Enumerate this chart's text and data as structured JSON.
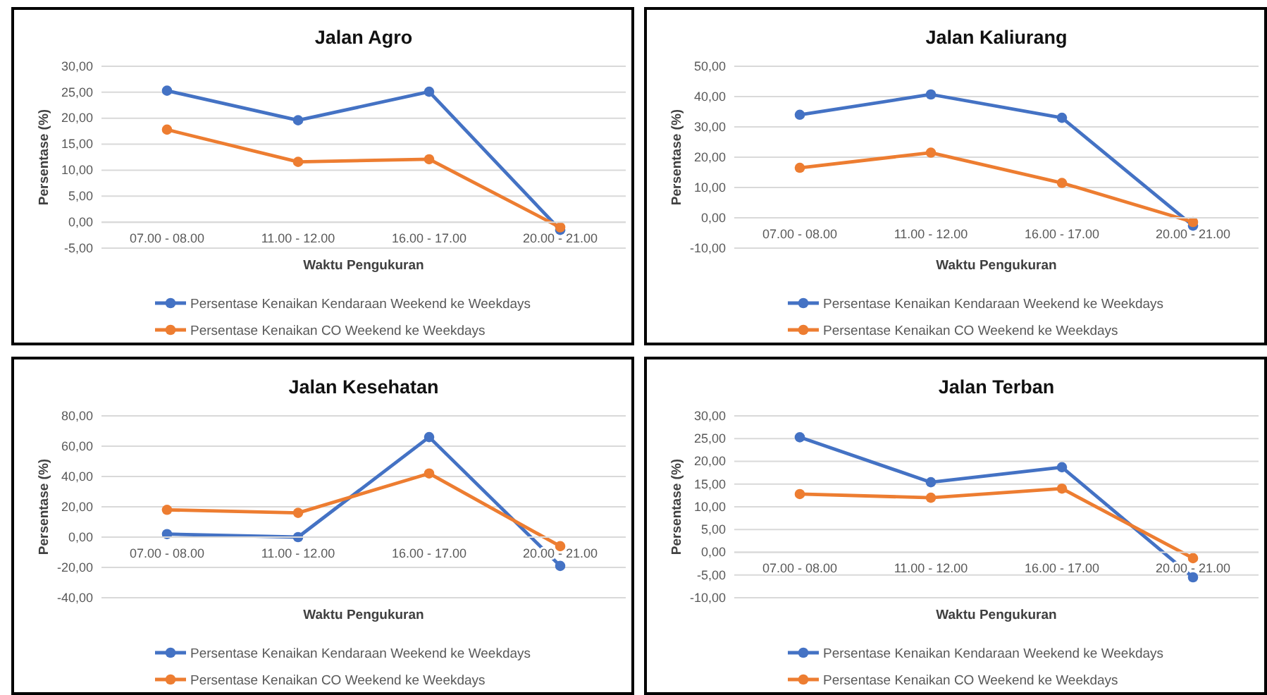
{
  "chart_data": [
    {
      "type": "line",
      "title": "Jalan Agro",
      "xlabel": "Waktu Pengukuran",
      "ylabel": "Persentase (%)",
      "categories": [
        "07.00 - 08.00",
        "11.00 - 12.00",
        "16.00 - 17.00",
        "20.00 - 21.00"
      ],
      "series": [
        {
          "name": "Persentase Kenaikan Kendaraan Weekend ke Weekdays",
          "color": "#4472c4",
          "values": [
            25.3,
            19.6,
            25.1,
            -1.5
          ]
        },
        {
          "name": "Persentase Kenaikan CO Weekend ke Weekdays",
          "color": "#ed7d31",
          "values": [
            17.8,
            11.6,
            12.1,
            -1.0
          ]
        }
      ],
      "ylim": [
        -5,
        30
      ],
      "yticks": [
        {
          "value": -5,
          "label": "-5,00"
        },
        {
          "value": 0,
          "label": "0,00"
        },
        {
          "value": 5,
          "label": "5,00"
        },
        {
          "value": 10,
          "label": "10,00"
        },
        {
          "value": 15,
          "label": "15,00"
        },
        {
          "value": 20,
          "label": "20,00"
        },
        {
          "value": 25,
          "label": "25,00"
        },
        {
          "value": 30,
          "label": "30,00"
        }
      ],
      "grid": "y",
      "legend": "bottom",
      "marker": "circle"
    },
    {
      "type": "line",
      "title": "Jalan Kaliurang",
      "xlabel": "Waktu Pengukuran",
      "ylabel": "Persentase (%)",
      "categories": [
        "07.00 - 08.00",
        "11.00 - 12.00",
        "16.00 - 17.00",
        "20.00 - 21.00"
      ],
      "series": [
        {
          "name": "Persentase Kenaikan Kendaraan Weekend ke Weekdays",
          "color": "#4472c4",
          "values": [
            34.0,
            40.7,
            33.0,
            -2.6
          ]
        },
        {
          "name": "Persentase Kenaikan CO Weekend ke Weekdays",
          "color": "#ed7d31",
          "values": [
            16.5,
            21.5,
            11.5,
            -1.4
          ]
        }
      ],
      "ylim": [
        -10,
        50
      ],
      "yticks": [
        {
          "value": -10,
          "label": "-10,00"
        },
        {
          "value": 0,
          "label": "0,00"
        },
        {
          "value": 10,
          "label": "10,00"
        },
        {
          "value": 20,
          "label": "20,00"
        },
        {
          "value": 30,
          "label": "30,00"
        },
        {
          "value": 40,
          "label": "40,00"
        },
        {
          "value": 50,
          "label": "50,00"
        }
      ],
      "grid": "y",
      "legend": "bottom",
      "marker": "circle"
    },
    {
      "type": "line",
      "title": "Jalan Kesehatan",
      "xlabel": "Waktu Pengukuran",
      "ylabel": "Persentase (%)",
      "categories": [
        "07.00 - 08.00",
        "11.00 - 12.00",
        "16.00 - 17.00",
        "20.00 - 21.00"
      ],
      "series": [
        {
          "name": "Persentase Kenaikan Kendaraan Weekend ke Weekdays",
          "color": "#4472c4",
          "values": [
            2,
            0,
            66,
            -19
          ]
        },
        {
          "name": "Persentase Kenaikan CO Weekend ke Weekdays",
          "color": "#ed7d31",
          "values": [
            18,
            16,
            42,
            -6
          ]
        }
      ],
      "ylim": [
        -40,
        80
      ],
      "yticks": [
        {
          "value": -40,
          "label": "-40,00"
        },
        {
          "value": -20,
          "label": "-20,00"
        },
        {
          "value": 0,
          "label": "0,00"
        },
        {
          "value": 20,
          "label": "20,00"
        },
        {
          "value": 40,
          "label": "40,00"
        },
        {
          "value": 60,
          "label": "60,00"
        },
        {
          "value": 80,
          "label": "80,00"
        }
      ],
      "grid": "y",
      "legend": "bottom",
      "marker": "circle"
    },
    {
      "type": "line",
      "title": "Jalan Terban",
      "xlabel": "Waktu Pengukuran",
      "ylabel": "Persentase (%)",
      "categories": [
        "07.00 - 08.00",
        "11.00 - 12.00",
        "16.00 - 17.00",
        "20.00 - 21.00"
      ],
      "series": [
        {
          "name": "Persentase Kenaikan Kendaraan Weekend ke Weekdays",
          "color": "#4472c4",
          "values": [
            25.3,
            15.4,
            18.7,
            -5.5
          ]
        },
        {
          "name": "Persentase Kenaikan CO Weekend ke Weekdays",
          "color": "#ed7d31",
          "values": [
            12.8,
            12.0,
            14.0,
            -1.3
          ]
        }
      ],
      "ylim": [
        -10,
        30
      ],
      "yticks": [
        {
          "value": -10,
          "label": "-10,00"
        },
        {
          "value": -5,
          "label": "-5,00"
        },
        {
          "value": 0,
          "label": "0,00"
        },
        {
          "value": 5,
          "label": "5,00"
        },
        {
          "value": 10,
          "label": "10,00"
        },
        {
          "value": 15,
          "label": "15,00"
        },
        {
          "value": 20,
          "label": "20,00"
        },
        {
          "value": 25,
          "label": "25,00"
        },
        {
          "value": 30,
          "label": "30,00"
        }
      ],
      "grid": "y",
      "legend": "bottom",
      "marker": "circle"
    }
  ]
}
